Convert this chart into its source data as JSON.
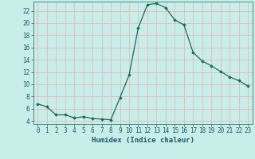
{
  "x": [
    0,
    1,
    2,
    3,
    4,
    5,
    6,
    7,
    8,
    9,
    10,
    11,
    12,
    13,
    14,
    15,
    16,
    17,
    18,
    19,
    20,
    21,
    22,
    23
  ],
  "y": [
    6.8,
    6.3,
    5.0,
    5.0,
    4.5,
    4.7,
    4.4,
    4.3,
    4.2,
    7.8,
    11.5,
    19.2,
    23.0,
    23.2,
    22.5,
    20.5,
    19.7,
    15.2,
    13.8,
    13.0,
    12.1,
    11.2,
    10.6,
    9.7
  ],
  "line_color": "#1a6b5a",
  "marker": "D",
  "marker_size": 1.8,
  "bg_color": "#c8eeea",
  "grid_color": "#e8b8b8",
  "spine_color": "#4a8a7a",
  "xlabel": "Humidex (Indice chaleur)",
  "xlim": [
    -0.5,
    23.5
  ],
  "ylim": [
    3.5,
    23.5
  ],
  "yticks": [
    4,
    6,
    8,
    10,
    12,
    14,
    16,
    18,
    20,
    22
  ],
  "xticks": [
    0,
    1,
    2,
    3,
    4,
    5,
    6,
    7,
    8,
    9,
    10,
    11,
    12,
    13,
    14,
    15,
    16,
    17,
    18,
    19,
    20,
    21,
    22,
    23
  ],
  "font_color": "#1a5a6a",
  "label_fontsize": 6.5,
  "tick_fontsize": 5.5
}
